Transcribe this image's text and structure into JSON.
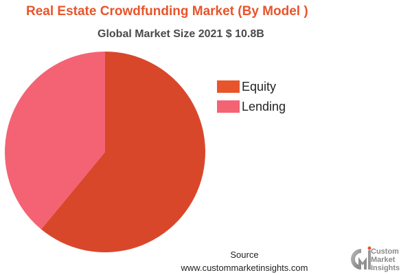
{
  "title": "Real Estate Crowdfunding Market (By Model )",
  "subtitle": "Global Market Size 2021 $ 10.8B",
  "colors": {
    "title": "#e8542b",
    "equity": "#d9472b",
    "lending": "#f36374",
    "equity_swatch": "#e8542b"
  },
  "source": {
    "label": "Source",
    "url": "www.custommarketinsights.com"
  },
  "logo": {
    "mark": "CMI",
    "icon": "custom-market-insights-logo",
    "line1": "Custom",
    "line2": "Market",
    "line3": "Insights"
  },
  "chart_data": {
    "type": "pie",
    "title": "Real Estate Crowdfunding Market (By Model )",
    "subtitle": "Global Market Size 2021 $ 10.8B",
    "categories": [
      "Equity",
      "Lending"
    ],
    "values": [
      61,
      39
    ],
    "unit": "%",
    "legend_position": "right",
    "start_angle": "top",
    "direction": "clockwise"
  }
}
